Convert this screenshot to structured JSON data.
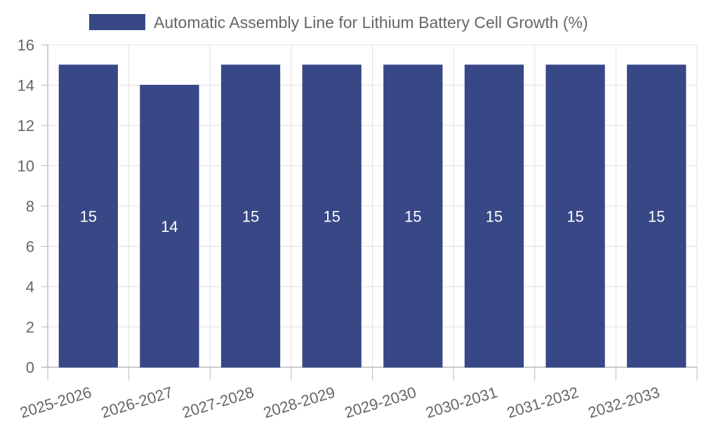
{
  "chart_data": {
    "type": "bar",
    "categories": [
      "2025-2026",
      "2026-2027",
      "2027-2028",
      "2028-2029",
      "2029-2030",
      "2030-2031",
      "2031-2032",
      "2032-2033"
    ],
    "series": [
      {
        "name": "Automatic Assembly Line for Lithium Battery Cell Growth (%)",
        "values": [
          15,
          14,
          15,
          15,
          15,
          15,
          15,
          15
        ],
        "color": "#384785"
      }
    ],
    "ylim": [
      0,
      16
    ],
    "yticks": [
      0,
      2,
      4,
      6,
      8,
      10,
      12,
      14,
      16
    ],
    "grid": true,
    "legend_position": "top-center",
    "data_labels": true,
    "colors": {
      "grid": "#e1e1e1",
      "axis": "#bbbbbb",
      "tick_text": "#666666",
      "bar_label": "#ffffff"
    }
  }
}
